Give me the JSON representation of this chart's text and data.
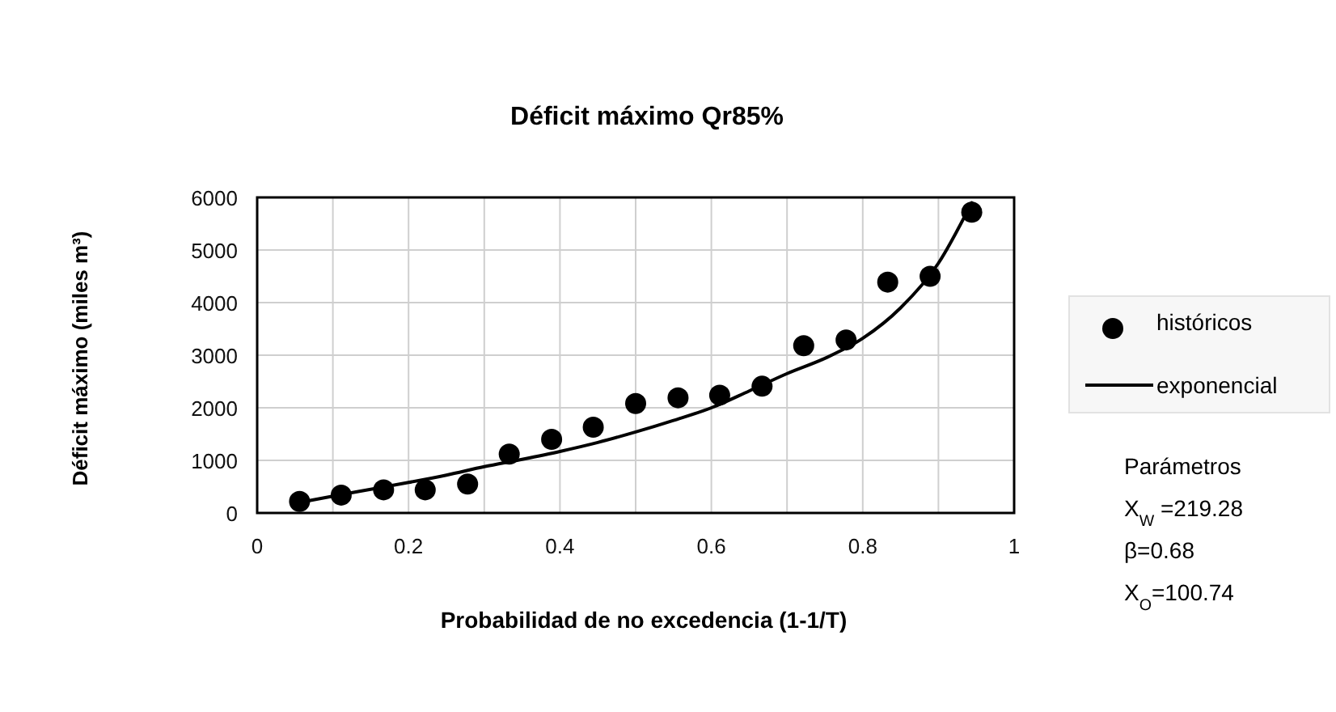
{
  "chart_data": {
    "type": "scatter",
    "title": "Déficit máximo Qr85%",
    "xlabel": "Probabilidad de no excedencia (1-1/T)",
    "ylabel": "Déficit máximo (miles m³)",
    "xlim": [
      0,
      1
    ],
    "xticks": [
      0,
      {
        "value": 0.1,
        "label": null
      },
      0.2,
      {
        "value": 0.3,
        "label": null
      },
      0.4,
      {
        "value": 0.5,
        "label": null
      },
      0.6,
      {
        "value": 0.7,
        "label": null
      },
      0.8,
      {
        "value": 0.9,
        "label": null
      },
      1
    ],
    "ylim": [
      0,
      6000
    ],
    "yticks": [
      0,
      1000,
      2000,
      3000,
      4000,
      5000,
      6000
    ],
    "grid": true,
    "legend": "right",
    "series": [
      {
        "name": "históricos",
        "marker": "circle",
        "color": "#000000",
        "x": [
          0.056,
          0.111,
          0.167,
          0.222,
          0.278,
          0.333,
          0.389,
          0.444,
          0.5,
          0.556,
          0.611,
          0.667,
          0.722,
          0.778,
          0.833,
          0.889,
          0.944
        ],
        "values": [
          220,
          340,
          440,
          440,
          550,
          1120,
          1400,
          1630,
          2080,
          2190,
          2240,
          2410,
          3180,
          3290,
          4390,
          4500,
          5720
        ]
      },
      {
        "name": "exponencial",
        "type": "line",
        "line_style": "solid",
        "color": "#000000",
        "x": [
          0.056,
          0.1,
          0.15,
          0.2,
          0.25,
          0.3,
          0.35,
          0.4,
          0.45,
          0.5,
          0.55,
          0.6,
          0.65,
          0.7,
          0.75,
          0.8,
          0.85,
          0.9,
          0.944
        ],
        "values": [
          200,
          320,
          450,
          580,
          720,
          880,
          1020,
          1170,
          1340,
          1540,
          1760,
          2000,
          2320,
          2650,
          2940,
          3320,
          3900,
          4750,
          5900
        ]
      }
    ],
    "annotations": [
      "Parámetros",
      "X$_{W}$ =219.28",
      "β=0.68",
      "X$_{O}$=100.74"
    ]
  }
}
